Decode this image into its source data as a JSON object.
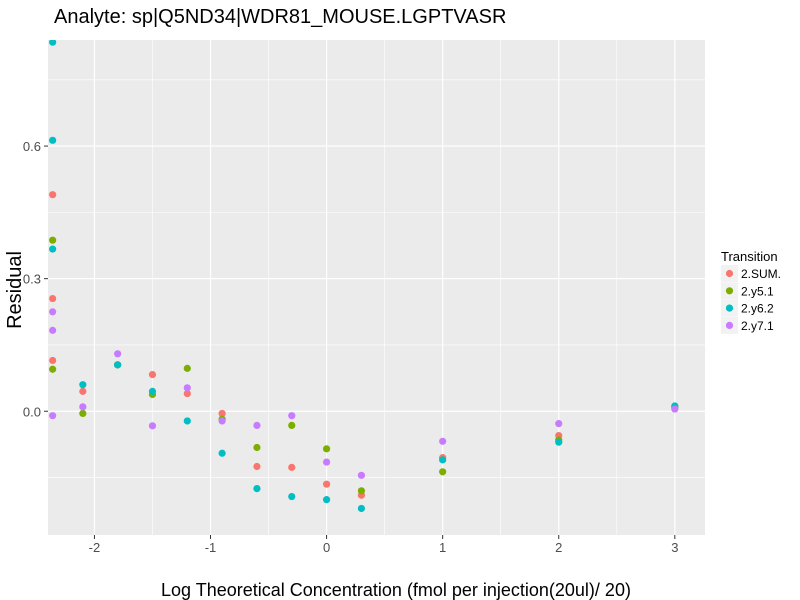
{
  "chart_data": {
    "type": "scatter",
    "title": "Analyte: sp|Q5ND34|WDR81_MOUSE.LGPTVASR",
    "xlabel": "Log Theoretical Concentration (fmol per injection(20ul)/ 20)",
    "ylabel": "Residual",
    "xlim": [
      -2.4,
      3.26
    ],
    "ylim": [
      -0.28,
      0.84
    ],
    "x_ticks": [
      -2,
      -1,
      0,
      1,
      2,
      3
    ],
    "x_tick_labels": [
      "-2",
      "-1",
      "0",
      "1",
      "2",
      "3"
    ],
    "y_ticks": [
      0.0,
      0.3,
      0.6
    ],
    "y_tick_labels": [
      "0.0",
      "0.3",
      "0.6"
    ],
    "legend": {
      "title": "Transition",
      "position": "right"
    },
    "series": [
      {
        "name": "2.SUM.",
        "color": "#F8766D",
        "points": [
          [
            -2.36,
            0.49
          ],
          [
            -2.36,
            0.255
          ],
          [
            -2.36,
            0.115
          ],
          [
            -2.1,
            0.045
          ],
          [
            -1.8,
            0.105
          ],
          [
            -1.5,
            0.083
          ],
          [
            -1.2,
            0.04
          ],
          [
            -0.9,
            -0.005
          ],
          [
            -0.6,
            -0.125
          ],
          [
            -0.3,
            -0.127
          ],
          [
            0.0,
            -0.165
          ],
          [
            0.3,
            -0.19
          ],
          [
            1.0,
            -0.105
          ],
          [
            2.0,
            -0.055
          ],
          [
            3.0,
            0.01
          ]
        ]
      },
      {
        "name": "2.y5.1",
        "color": "#7CAE00",
        "points": [
          [
            -2.36,
            0.387
          ],
          [
            -2.36,
            0.095
          ],
          [
            -2.1,
            -0.005
          ],
          [
            -1.8,
            0.105
          ],
          [
            -1.5,
            0.038
          ],
          [
            -1.2,
            0.097
          ],
          [
            -0.9,
            -0.018
          ],
          [
            -0.6,
            -0.082
          ],
          [
            -0.3,
            -0.032
          ],
          [
            0.0,
            -0.085
          ],
          [
            0.3,
            -0.18
          ],
          [
            1.0,
            -0.137
          ],
          [
            2.0,
            -0.065
          ],
          [
            3.0,
            0.008
          ]
        ]
      },
      {
        "name": "2.y6.2",
        "color": "#00BFC4",
        "points": [
          [
            -2.36,
            0.835
          ],
          [
            -2.36,
            0.613
          ],
          [
            -2.36,
            0.367
          ],
          [
            -2.1,
            0.06
          ],
          [
            -1.8,
            0.105
          ],
          [
            -1.5,
            0.045
          ],
          [
            -1.2,
            -0.022
          ],
          [
            -0.9,
            -0.095
          ],
          [
            -0.6,
            -0.175
          ],
          [
            -0.3,
            -0.193
          ],
          [
            0.0,
            -0.2
          ],
          [
            0.3,
            -0.22
          ],
          [
            1.0,
            -0.11
          ],
          [
            2.0,
            -0.07
          ],
          [
            3.0,
            0.012
          ]
        ]
      },
      {
        "name": "2.y7.1",
        "color": "#C77CFF",
        "points": [
          [
            -2.36,
            0.225
          ],
          [
            -2.36,
            0.183
          ],
          [
            -2.36,
            -0.01
          ],
          [
            -2.1,
            0.01
          ],
          [
            -1.8,
            0.13
          ],
          [
            -1.5,
            -0.033
          ],
          [
            -1.2,
            0.053
          ],
          [
            -0.9,
            -0.022
          ],
          [
            -0.6,
            -0.032
          ],
          [
            -0.3,
            -0.01
          ],
          [
            0.0,
            -0.115
          ],
          [
            0.3,
            -0.145
          ],
          [
            1.0,
            -0.068
          ],
          [
            2.0,
            -0.028
          ],
          [
            3.0,
            0.005
          ]
        ]
      }
    ]
  }
}
